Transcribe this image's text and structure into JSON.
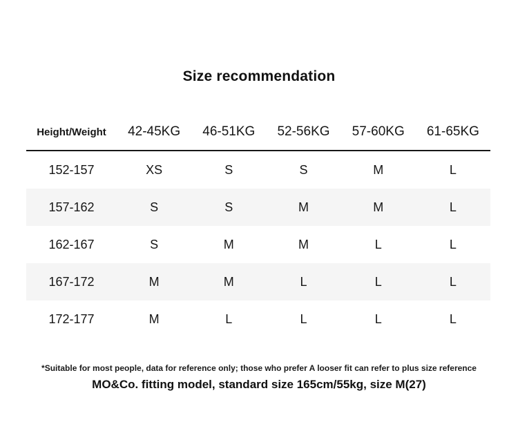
{
  "title": "Size recommendation",
  "table": {
    "column_headers": [
      "Height/Weight",
      "42-45KG",
      "46-51KG",
      "52-56KG",
      "57-60KG",
      "61-65KG"
    ],
    "rows": [
      {
        "height_range": "152-157",
        "sizes": [
          "XS",
          "S",
          "S",
          "M",
          "L"
        ]
      },
      {
        "height_range": "157-162",
        "sizes": [
          "S",
          "S",
          "M",
          "M",
          "L"
        ]
      },
      {
        "height_range": "162-167",
        "sizes": [
          "S",
          "M",
          "M",
          "L",
          "L"
        ]
      },
      {
        "height_range": "167-172",
        "sizes": [
          "M",
          "M",
          "L",
          "L",
          "L"
        ]
      },
      {
        "height_range": "172-177",
        "sizes": [
          "M",
          "L",
          "L",
          "L",
          "L"
        ]
      }
    ]
  },
  "footnotes": {
    "disclaimer": "*Suitable for most people, data for reference only; those who prefer A looser fit can refer to plus size reference",
    "model_info": "MO&Co. fitting model, standard size 165cm/55kg, size M(27)"
  },
  "colors": {
    "background": "#ffffff",
    "text": "#121212",
    "stripe": "#f5f5f5",
    "divider": "#161616"
  }
}
